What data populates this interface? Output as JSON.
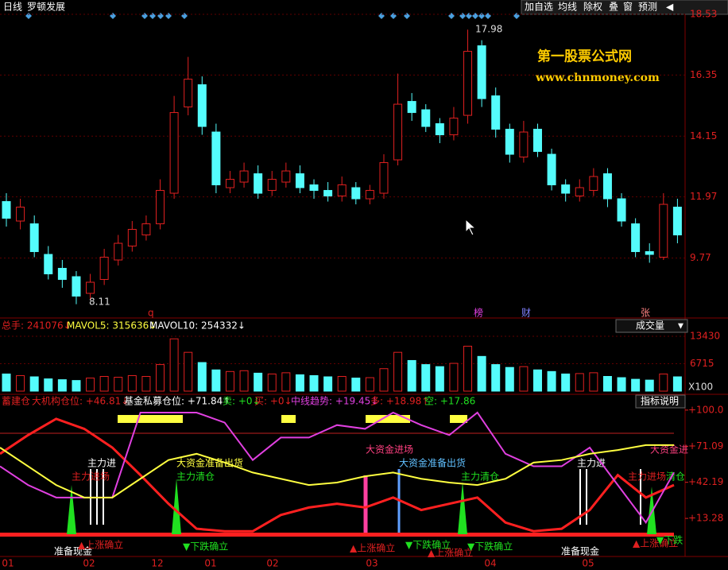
{
  "toolbar": {
    "period": "日线",
    "stock": "罗顿发展",
    "buttons": [
      "加自选",
      "均线",
      "除权",
      "叠",
      "窗",
      "预测"
    ]
  },
  "watermark": {
    "name": "第一股票公式网",
    "url": "www.chnmoney.com"
  },
  "price_chart": {
    "ylim": [
      7.9,
      18.76
    ],
    "yticks": [
      18.53,
      16.35,
      14.15,
      11.97,
      9.77
    ],
    "open": [
      11.8,
      11.1,
      11.0,
      9.9,
      9.4,
      9.1,
      8.5,
      9.0,
      9.7,
      10.2,
      10.6,
      11.0,
      12.1,
      15.2,
      16.0,
      14.3,
      12.3,
      12.5,
      12.8,
      12.2,
      12.5,
      12.8,
      12.4,
      12.2,
      12.0,
      12.3,
      11.9,
      12.1,
      13.3,
      15.4,
      15.1,
      14.6,
      14.2,
      14.9,
      17.4,
      15.6,
      14.4,
      13.4,
      14.4,
      13.5,
      12.4,
      12.0,
      12.2,
      12.8,
      11.9,
      11.0,
      10.0,
      9.8,
      11.6
    ],
    "close": [
      11.2,
      11.6,
      10.0,
      9.2,
      9.0,
      8.4,
      8.9,
      9.8,
      10.3,
      10.8,
      11.0,
      12.2,
      15.0,
      16.2,
      14.5,
      12.4,
      12.6,
      12.9,
      12.1,
      12.6,
      12.9,
      12.3,
      12.2,
      12.0,
      12.4,
      11.9,
      12.2,
      13.2,
      15.3,
      15.0,
      14.5,
      14.2,
      14.8,
      17.2,
      15.5,
      14.4,
      13.5,
      14.3,
      13.6,
      12.4,
      12.1,
      12.3,
      12.7,
      11.9,
      11.1,
      10.0,
      9.9,
      11.7,
      10.6
    ],
    "high": [
      12.1,
      11.9,
      11.3,
      10.2,
      9.7,
      9.3,
      9.2,
      10.1,
      10.6,
      11.1,
      11.3,
      12.6,
      15.6,
      17.0,
      16.3,
      14.6,
      12.9,
      13.2,
      13.1,
      12.9,
      13.2,
      13.1,
      12.6,
      12.5,
      12.7,
      12.5,
      12.4,
      13.5,
      16.4,
      15.7,
      15.3,
      14.8,
      15.2,
      17.98,
      17.6,
      15.9,
      14.6,
      14.7,
      14.6,
      13.7,
      12.6,
      12.6,
      13.0,
      13.0,
      12.1,
      11.2,
      10.3,
      12.1,
      11.9
    ],
    "low": [
      10.9,
      10.8,
      9.8,
      9.0,
      8.7,
      8.11,
      8.3,
      8.8,
      9.5,
      10.0,
      10.4,
      10.8,
      11.9,
      14.9,
      14.2,
      12.1,
      12.1,
      12.3,
      11.9,
      12.0,
      12.3,
      12.1,
      11.9,
      11.8,
      11.8,
      11.7,
      11.7,
      11.9,
      13.1,
      14.7,
      14.3,
      13.9,
      14.0,
      14.6,
      15.2,
      14.1,
      13.2,
      13.2,
      13.4,
      12.2,
      11.8,
      11.8,
      12.0,
      11.6,
      10.9,
      9.8,
      9.6,
      9.7,
      10.3
    ],
    "max_label": "17.98",
    "min_label": "8.11",
    "markers": [
      "q",
      "榜",
      "财",
      "张"
    ]
  },
  "volume_panel": {
    "legend": {
      "total": "总手: 241076↓",
      "mavol5": "MAVOL5: 315636↓",
      "mavol10": "MAVOL10: 254332↓"
    },
    "indicator": "成交量",
    "ylim": [
      0,
      14400
    ],
    "yticks": [
      13430,
      6715
    ],
    "unit": "X100",
    "values": [
      4200,
      3800,
      3500,
      3000,
      2800,
      2600,
      3200,
      3600,
      3400,
      3800,
      3600,
      6500,
      12800,
      9500,
      7000,
      5200,
      4800,
      5000,
      4400,
      4200,
      4500,
      4000,
      3800,
      3500,
      3600,
      3200,
      3300,
      5500,
      9500,
      7500,
      6500,
      6000,
      6800,
      11000,
      8500,
      6500,
      5800,
      6000,
      5200,
      4800,
      4200,
      4300,
      4500,
      3600,
      3300,
      2900,
      2700,
      4200,
      3500
    ]
  },
  "indicator_panel": {
    "legend": [
      "蓄建仓",
      "大机构仓位: +46.81↓",
      "基金私募仓位: +71.84↑",
      "卖: +0↓",
      "买: +0↓",
      "中线趋势: +19.45↓",
      "多: +18.98↑",
      "空: +17.86"
    ],
    "help": "指标说明",
    "ylim": [
      -1.3,
      105
    ],
    "yticks": [
      {
        "value": 100,
        "label": "+100.0"
      },
      {
        "value": 71.09,
        "label": "+71.09"
      },
      {
        "value": 42.19,
        "label": "+42.19"
      },
      {
        "value": 13.28,
        "label": "+13.28"
      }
    ],
    "series": [
      {
        "color": "#ff2020",
        "values": [
          65,
          80,
          93,
          85,
          70,
          48,
          25,
          5,
          3,
          3,
          16,
          22,
          25,
          22,
          30,
          20,
          25,
          30,
          10,
          3,
          5,
          20,
          48,
          30,
          40
        ]
      },
      {
        "color": "#e040e0",
        "values": [
          55,
          40,
          30,
          30,
          30,
          98,
          98,
          98,
          90,
          60,
          78,
          78,
          88,
          85,
          98,
          88,
          80,
          98,
          65,
          55,
          55,
          70,
          40,
          10,
          50
        ]
      },
      {
        "color": "#ffff40",
        "values": [
          70,
          55,
          40,
          30,
          30,
          45,
          60,
          65,
          58,
          50,
          45,
          40,
          42,
          47,
          50,
          45,
          42,
          40,
          45,
          58,
          60,
          65,
          68,
          72,
          72
        ]
      }
    ],
    "annotations": [
      "主力进",
      "主力进场",
      "大资金准备出货",
      "主力清仓",
      "大资金进场",
      "大资金准备出货",
      "主力清仓",
      "主力进",
      "主力进场",
      "大资金进",
      "清仓"
    ],
    "signals": [
      "准备现金",
      "▲上涨确立",
      "▼下跌确立",
      "▲上涨确立",
      "▼下跌确立",
      "▲上涨确立",
      "▼下跌确立",
      "准备现金",
      "▲上涨确立",
      "▼下跌"
    ]
  },
  "x_axis": [
    "01",
    "02",
    "12",
    "01",
    "02",
    "03",
    "04",
    "05"
  ]
}
